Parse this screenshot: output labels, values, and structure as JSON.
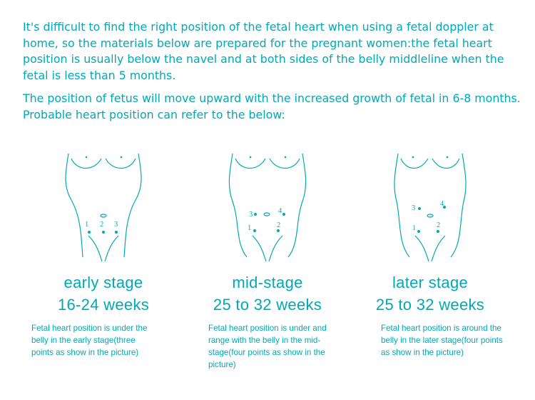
{
  "intro": {
    "paragraph1": "It's difficult to find the right position of the fetal heart when using a fetal doppler at home, so the materials below are prepared for the pregnant women:the fetal heart position is usually below the navel and at both sides of the belly middleline when the fetal is less than 5 months.",
    "paragraph2_line1": "The position of fetus will move upward with the increased growth of fetal in 6-8 months.",
    "paragraph2_line2": "Probable heart position can refer to the below:"
  },
  "stages": [
    {
      "name": "early stage",
      "weeks": "16-24 weeks",
      "description": "Fetal heart position is under the belly in the early stage(three points as show in the picture)",
      "points": [
        "1",
        "2",
        "3"
      ]
    },
    {
      "name": "mid-stage",
      "weeks": "25 to 32 weeks",
      "description": "Fetal heart position is under and range with the belly in the mid-stage(four points as show in the picture)",
      "points": [
        "1",
        "2",
        "3",
        "4"
      ]
    },
    {
      "name": "later stage",
      "weeks": "25 to 32 weeks",
      "description": "Fetal heart position is around the belly in the later stage(four points as show in the picture)",
      "points": [
        "1",
        "2",
        "3",
        "4"
      ]
    }
  ],
  "colors": {
    "accent": "#00a9b5",
    "background": "#ffffff"
  }
}
